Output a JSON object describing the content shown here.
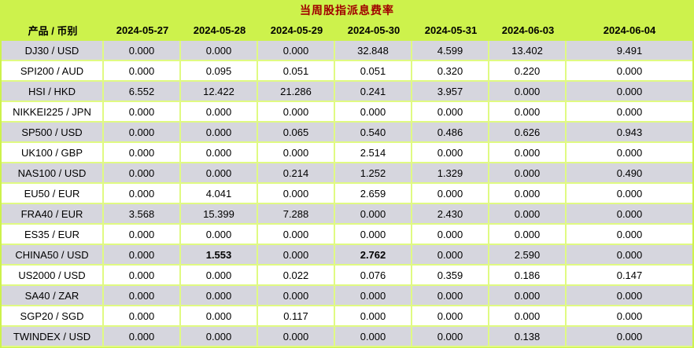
{
  "title": "当周股指派息费率",
  "colors": {
    "header_bg": "#cdf24c",
    "grid_line": "#e0fa82",
    "row_alt_bg": "#d6d6de",
    "row_bg": "#ffffff",
    "title_color": "#a00000",
    "text_color": "#000000"
  },
  "chart_data": {
    "type": "table",
    "title": "当周股指派息费率",
    "product_column_header": "产品 / 币别",
    "date_columns": [
      "2024-05-27",
      "2024-05-28",
      "2024-05-29",
      "2024-05-30",
      "2024-05-31",
      "2024-06-03",
      "2024-06-04"
    ],
    "rows": [
      {
        "product": "DJ30 / USD",
        "values": [
          "0.000",
          "0.000",
          "0.000",
          "32.848",
          "4.599",
          "13.402",
          "9.491"
        ],
        "bold": []
      },
      {
        "product": "SPI200 / AUD",
        "values": [
          "0.000",
          "0.095",
          "0.051",
          "0.051",
          "0.320",
          "0.220",
          "0.000"
        ],
        "bold": []
      },
      {
        "product": "HSI / HKD",
        "values": [
          "6.552",
          "12.422",
          "21.286",
          "0.241",
          "3.957",
          "0.000",
          "0.000"
        ],
        "bold": []
      },
      {
        "product": "NIKKEI225 / JPN",
        "values": [
          "0.000",
          "0.000",
          "0.000",
          "0.000",
          "0.000",
          "0.000",
          "0.000"
        ],
        "bold": []
      },
      {
        "product": "SP500 / USD",
        "values": [
          "0.000",
          "0.000",
          "0.065",
          "0.540",
          "0.486",
          "0.626",
          "0.943"
        ],
        "bold": []
      },
      {
        "product": "UK100 / GBP",
        "values": [
          "0.000",
          "0.000",
          "0.000",
          "2.514",
          "0.000",
          "0.000",
          "0.000"
        ],
        "bold": []
      },
      {
        "product": "NAS100 / USD",
        "values": [
          "0.000",
          "0.000",
          "0.214",
          "1.252",
          "1.329",
          "0.000",
          "0.490"
        ],
        "bold": []
      },
      {
        "product": "EU50 / EUR",
        "values": [
          "0.000",
          "4.041",
          "0.000",
          "2.659",
          "0.000",
          "0.000",
          "0.000"
        ],
        "bold": []
      },
      {
        "product": "FRA40 / EUR",
        "values": [
          "3.568",
          "15.399",
          "7.288",
          "0.000",
          "2.430",
          "0.000",
          "0.000"
        ],
        "bold": []
      },
      {
        "product": "ES35 / EUR",
        "values": [
          "0.000",
          "0.000",
          "0.000",
          "0.000",
          "0.000",
          "0.000",
          "0.000"
        ],
        "bold": []
      },
      {
        "product": "CHINA50 / USD",
        "values": [
          "0.000",
          "1.553",
          "0.000",
          "2.762",
          "0.000",
          "2.590",
          "0.000"
        ],
        "bold": [
          1,
          3
        ]
      },
      {
        "product": "US2000 / USD",
        "values": [
          "0.000",
          "0.000",
          "0.022",
          "0.076",
          "0.359",
          "0.186",
          "0.147"
        ],
        "bold": []
      },
      {
        "product": "SA40 / ZAR",
        "values": [
          "0.000",
          "0.000",
          "0.000",
          "0.000",
          "0.000",
          "0.000",
          "0.000"
        ],
        "bold": []
      },
      {
        "product": "SGP20 / SGD",
        "values": [
          "0.000",
          "0.000",
          "0.117",
          "0.000",
          "0.000",
          "0.000",
          "0.000"
        ],
        "bold": []
      },
      {
        "product": "TWINDEX / USD",
        "values": [
          "0.000",
          "0.000",
          "0.000",
          "0.000",
          "0.000",
          "0.138",
          "0.000"
        ],
        "bold": []
      }
    ]
  }
}
